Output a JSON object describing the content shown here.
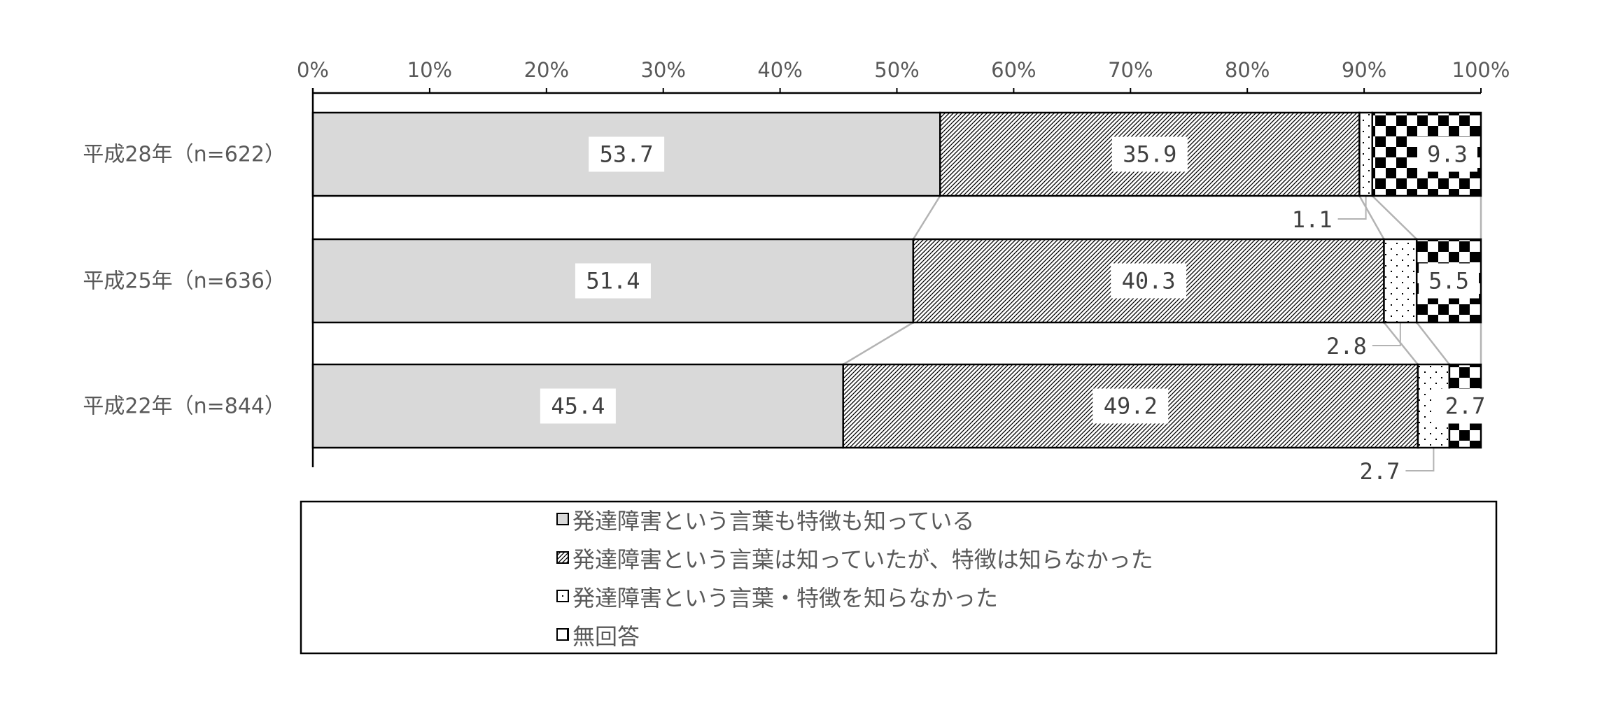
{
  "chart_data": {
    "type": "bar",
    "orientation": "horizontal",
    "stacked": "percent",
    "categories": [
      "平成28年（n=622）",
      "平成25年（n=636）",
      "平成22年（n=844）"
    ],
    "series": [
      {
        "name": "発達障害という言葉も特徴も知っている",
        "values": [
          53.7,
          51.4,
          45.4
        ],
        "color": "#d9d9d9",
        "pattern": "solid"
      },
      {
        "name": "発達障害という言葉は知っていたが、特徴は知らなかった",
        "values": [
          35.9,
          40.3,
          49.2
        ],
        "color": "#ffffff",
        "pattern": "diagonal-hatch"
      },
      {
        "name": "発達障害という言葉・特徴を知らなかった",
        "values": [
          1.1,
          2.8,
          2.7
        ],
        "color": "#ffffff",
        "pattern": "dots"
      },
      {
        "name": "無回答",
        "values": [
          9.3,
          5.5,
          2.7
        ],
        "color": "#000000",
        "pattern": "checker"
      }
    ],
    "x_ticks": [
      "0%",
      "10%",
      "20%",
      "30%",
      "40%",
      "50%",
      "60%",
      "70%",
      "80%",
      "90%",
      "100%"
    ],
    "xlim": [
      0,
      100
    ],
    "data_labels": [
      [
        "53.7",
        "35.9",
        "1.1",
        "9.3"
      ],
      [
        "51.4",
        "40.3",
        "2.8",
        "5.5"
      ],
      [
        "45.4",
        "49.2",
        "2.7",
        "2.7"
      ]
    ],
    "series_lines": true,
    "legend_position": "bottom",
    "grid": false
  }
}
